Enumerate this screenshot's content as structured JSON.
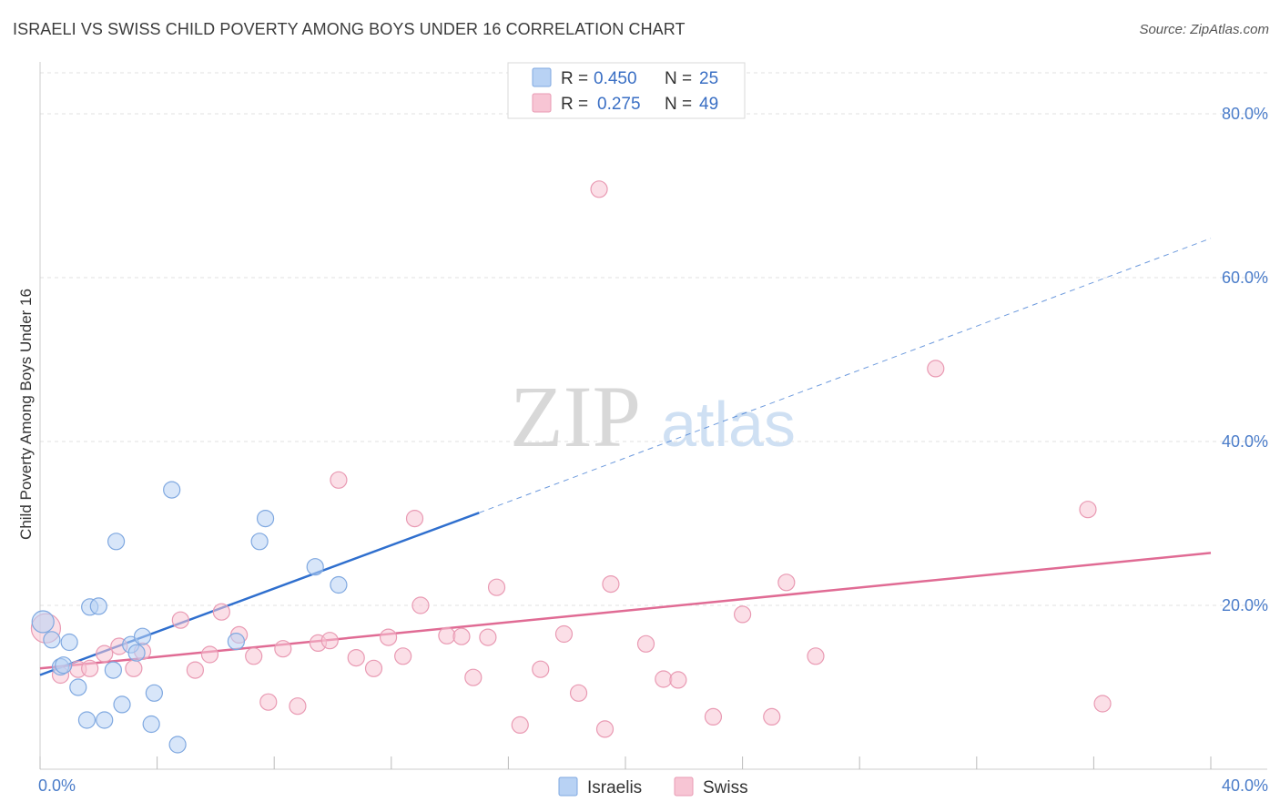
{
  "title": "ISRAELI VS SWISS CHILD POVERTY AMONG BOYS UNDER 16 CORRELATION CHART",
  "source": "Source: ZipAtlas.com",
  "watermark": {
    "zip": "ZIP",
    "atlas": "atlas"
  },
  "colors": {
    "israelis_fill": "#b8d2f4",
    "israelis_stroke": "#7fa8e0",
    "israelis_line": "#2f6fce",
    "swiss_fill": "#f7c5d4",
    "swiss_stroke": "#e99ab3",
    "swiss_line": "#e06b94",
    "tick_text": "#4a7cc9",
    "grid": "#e2e2e2"
  },
  "legend": {
    "r_label": "R =",
    "n_label": "N =",
    "rows": [
      {
        "series": "israelis",
        "r": "0.450",
        "n": "25"
      },
      {
        "series": "swiss",
        "r": "0.275",
        "n": "49"
      }
    ]
  },
  "chart_data": {
    "type": "scatter",
    "title": "ISRAELI VS SWISS CHILD POVERTY AMONG BOYS UNDER 16 CORRELATION CHART",
    "xlabel": "",
    "ylabel": "Child Poverty Among Boys Under 16",
    "xlim": [
      0,
      40
    ],
    "ylim": [
      0,
      85
    ],
    "x_tick_labels": [
      "0.0%",
      "40.0%"
    ],
    "y_ticks": [
      20,
      40,
      60,
      80
    ],
    "y_tick_labels": [
      "20.0%",
      "40.0%",
      "60.0%",
      "80.0%"
    ],
    "grid": true,
    "legend_position": "top-center",
    "series": [
      {
        "name": "Israelis",
        "color_key": "israelis",
        "points": [
          [
            0.1,
            18.0
          ],
          [
            0.4,
            15.8
          ],
          [
            0.7,
            12.5
          ],
          [
            0.8,
            12.7
          ],
          [
            1.0,
            15.5
          ],
          [
            1.3,
            10.0
          ],
          [
            1.6,
            6.0
          ],
          [
            1.7,
            19.8
          ],
          [
            2.0,
            19.9
          ],
          [
            2.2,
            6.0
          ],
          [
            2.5,
            12.1
          ],
          [
            2.6,
            27.8
          ],
          [
            2.8,
            7.9
          ],
          [
            3.1,
            15.2
          ],
          [
            3.3,
            14.2
          ],
          [
            3.5,
            16.2
          ],
          [
            3.8,
            5.5
          ],
          [
            3.9,
            9.3
          ],
          [
            4.5,
            34.1
          ],
          [
            4.7,
            3.0
          ],
          [
            6.7,
            15.6
          ],
          [
            7.5,
            27.8
          ],
          [
            7.7,
            30.6
          ],
          [
            9.4,
            24.7
          ],
          [
            10.2,
            22.5
          ]
        ],
        "trend": {
          "x0": 0,
          "y0": 11.5,
          "x1": 15.0,
          "y1": 31.3,
          "dash_to_x": 40,
          "dash_to_y": 64.8
        }
      },
      {
        "name": "Swiss",
        "color_key": "swiss",
        "points": [
          [
            0.2,
            17.2
          ],
          [
            0.7,
            11.5
          ],
          [
            1.3,
            12.2
          ],
          [
            1.7,
            12.3
          ],
          [
            2.2,
            14.1
          ],
          [
            2.7,
            15.0
          ],
          [
            3.2,
            12.3
          ],
          [
            3.5,
            14.4
          ],
          [
            4.8,
            18.2
          ],
          [
            5.3,
            12.1
          ],
          [
            5.8,
            14.0
          ],
          [
            6.2,
            19.2
          ],
          [
            6.8,
            16.4
          ],
          [
            7.3,
            13.8
          ],
          [
            7.8,
            8.2
          ],
          [
            8.3,
            14.7
          ],
          [
            8.8,
            7.7
          ],
          [
            9.5,
            15.4
          ],
          [
            9.9,
            15.7
          ],
          [
            10.2,
            35.3
          ],
          [
            10.8,
            13.6
          ],
          [
            11.4,
            12.3
          ],
          [
            11.9,
            16.1
          ],
          [
            12.4,
            13.8
          ],
          [
            12.8,
            30.6
          ],
          [
            13.0,
            20.0
          ],
          [
            13.9,
            16.3
          ],
          [
            14.4,
            16.2
          ],
          [
            14.8,
            11.2
          ],
          [
            15.3,
            16.1
          ],
          [
            15.6,
            22.2
          ],
          [
            16.4,
            5.4
          ],
          [
            17.1,
            12.2
          ],
          [
            17.9,
            16.5
          ],
          [
            18.4,
            9.3
          ],
          [
            19.1,
            70.8
          ],
          [
            19.3,
            4.9
          ],
          [
            19.5,
            22.6
          ],
          [
            20.7,
            15.3
          ],
          [
            21.3,
            11.0
          ],
          [
            21.8,
            10.9
          ],
          [
            23.0,
            6.4
          ],
          [
            24.0,
            18.9
          ],
          [
            25.0,
            6.4
          ],
          [
            25.5,
            22.8
          ],
          [
            26.5,
            13.8
          ],
          [
            30.6,
            48.9
          ],
          [
            35.8,
            31.7
          ],
          [
            36.3,
            8.0
          ]
        ],
        "trend": {
          "x0": 0,
          "y0": 12.3,
          "x1": 40,
          "y1": 26.4
        }
      }
    ]
  }
}
